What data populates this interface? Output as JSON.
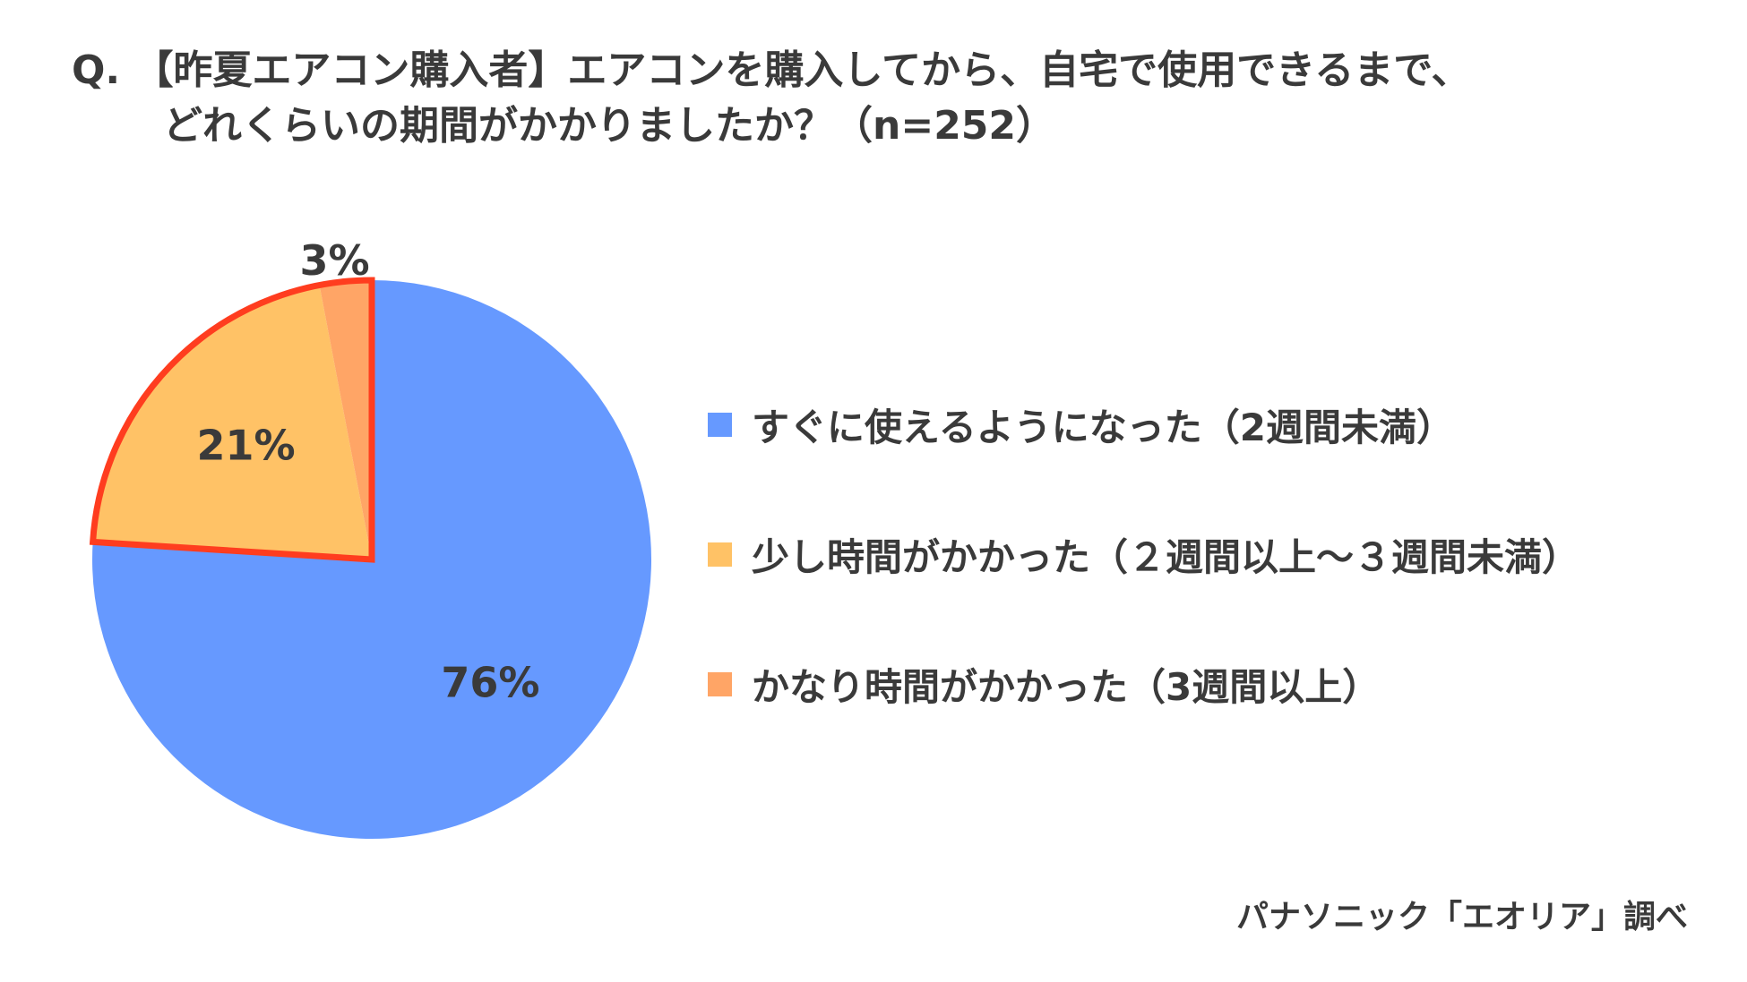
{
  "question": {
    "line1": "Q. 【昨夏エアコン購入者】エアコンを購入してから、自宅で使用できるまで、",
    "line2": "どれくらいの期間がかかりましたか？（n=252）"
  },
  "chart_data": {
    "type": "pie",
    "title": "Q. 【昨夏エアコン購入者】エアコンを購入してから、自宅で使用できるまで、どれくらいの期間がかかりましたか？（n=252）",
    "slices": [
      {
        "label": "すぐに使えるようになった（2週間未満）",
        "value": 76,
        "value_label": "76%",
        "color": "#6699ff"
      },
      {
        "label": "少し時間がかかった（２週間以上～３週間未満）",
        "value": 21,
        "value_label": "21%",
        "color": "#ffc266"
      },
      {
        "label": "かなり時間がかかった（3週間以上）",
        "value": 3,
        "value_label": "3%",
        "color": "#ffa566"
      }
    ],
    "highlight_color": "#ff3d1f",
    "legend_position": "right",
    "start_angle": "12 o'clock, clockwise"
  },
  "legend": {
    "items": [
      {
        "label": "すぐに使えるようになった（2週間未満）",
        "color": "#6699ff"
      },
      {
        "label": "少し時間がかかった（２週間以上～３週間未満）",
        "color": "#ffc266"
      },
      {
        "label": "かなり時間がかかった（3週間以上）",
        "color": "#ffa566"
      }
    ]
  },
  "source": "パナソニック「エオリア」調べ"
}
